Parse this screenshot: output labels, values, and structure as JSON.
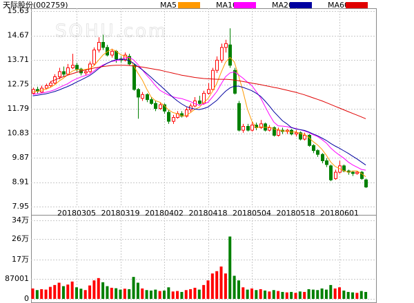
{
  "watermark": "SOHU.com",
  "chart_data": [
    {
      "type": "candlestick",
      "title": "天际股份(002759)",
      "categories": [
        null,
        null,
        null,
        null,
        null,
        null,
        null,
        null,
        null,
        null,
        "20180305",
        null,
        null,
        null,
        null,
        null,
        null,
        null,
        null,
        null,
        "20180319",
        null,
        null,
        null,
        null,
        null,
        null,
        null,
        null,
        null,
        "20180402",
        null,
        null,
        null,
        null,
        null,
        null,
        null,
        null,
        null,
        "20180418",
        null,
        null,
        null,
        null,
        null,
        null,
        null,
        null,
        null,
        "20180504",
        null,
        null,
        null,
        null,
        null,
        null,
        null,
        null,
        null,
        "20180518",
        null,
        null,
        null,
        null,
        null,
        null,
        null,
        null,
        null,
        "20180601",
        null,
        null,
        null,
        null,
        null,
        null
      ],
      "open": [
        12.4,
        12.55,
        12.45,
        12.6,
        12.7,
        12.8,
        13.05,
        13.25,
        13.15,
        13.4,
        13.5,
        13.35,
        13.2,
        13.25,
        13.55,
        14.1,
        14.4,
        14.2,
        13.9,
        14.05,
        13.75,
        13.7,
        13.85,
        13.5,
        12.55,
        12.2,
        12.35,
        12.15,
        12.0,
        11.8,
        11.95,
        11.65,
        11.3,
        11.45,
        11.6,
        11.5,
        11.75,
        11.9,
        12.1,
        12.0,
        12.4,
        12.55,
        13.3,
        13.7,
        14.2,
        14.3,
        13.3,
        12.0,
        10.95,
        11.1,
        10.95,
        11.15,
        11.05,
        11.2,
        10.95,
        11.05,
        10.75,
        10.95,
        10.9,
        10.95,
        10.8,
        10.85,
        10.6,
        10.75,
        10.35,
        10.15,
        10.0,
        9.75,
        9.55,
        9.05,
        9.3,
        9.55,
        9.35,
        9.3,
        9.25,
        9.3,
        9.0
      ],
      "high": [
        12.62,
        12.66,
        12.7,
        12.78,
        12.88,
        13.15,
        13.4,
        13.45,
        13.55,
        13.95,
        13.6,
        13.4,
        13.35,
        13.65,
        14.2,
        14.6,
        14.7,
        14.3,
        14.15,
        14.1,
        13.85,
        14.0,
        13.95,
        13.55,
        12.6,
        12.45,
        12.4,
        12.25,
        12.1,
        12.05,
        12.0,
        11.75,
        11.55,
        11.7,
        11.7,
        11.85,
        12.0,
        12.25,
        12.3,
        12.5,
        12.8,
        13.4,
        13.85,
        14.35,
        14.5,
        14.95,
        13.4,
        12.1,
        11.2,
        11.2,
        11.3,
        11.25,
        11.35,
        11.25,
        11.15,
        11.1,
        11.05,
        11.05,
        11.0,
        11.0,
        10.95,
        10.9,
        10.85,
        10.8,
        10.4,
        10.2,
        10.05,
        9.85,
        9.6,
        9.4,
        9.75,
        9.6,
        9.4,
        9.35,
        9.35,
        9.35,
        9.05
      ],
      "low": [
        12.35,
        12.4,
        12.4,
        12.55,
        12.62,
        12.75,
        12.95,
        13.05,
        13.1,
        13.35,
        13.25,
        13.1,
        13.1,
        13.2,
        13.5,
        14.0,
        14.1,
        13.85,
        13.8,
        13.6,
        13.6,
        13.65,
        13.5,
        12.5,
        11.4,
        12.1,
        12.05,
        11.95,
        11.7,
        11.75,
        11.6,
        11.2,
        11.2,
        11.4,
        11.45,
        11.45,
        11.65,
        11.85,
        11.95,
        11.95,
        12.35,
        12.5,
        13.2,
        13.6,
        14.0,
        13.4,
        12.35,
        10.9,
        10.85,
        10.9,
        10.9,
        10.95,
        11.0,
        10.9,
        10.9,
        10.7,
        10.7,
        10.8,
        10.8,
        10.75,
        10.7,
        10.55,
        10.55,
        10.3,
        10.05,
        9.9,
        9.65,
        9.5,
        8.95,
        9.0,
        9.25,
        9.3,
        9.2,
        9.15,
        9.2,
        9.0,
        8.68
      ],
      "close": [
        12.55,
        12.48,
        12.6,
        12.7,
        12.8,
        13.05,
        13.25,
        13.15,
        13.4,
        13.5,
        13.35,
        13.2,
        13.25,
        13.55,
        14.1,
        14.4,
        14.2,
        13.9,
        14.05,
        13.75,
        13.7,
        13.9,
        13.55,
        12.55,
        12.25,
        12.35,
        12.15,
        12.0,
        11.8,
        11.95,
        11.7,
        11.3,
        11.45,
        11.6,
        11.5,
        11.75,
        11.9,
        12.1,
        12.0,
        12.4,
        12.55,
        13.3,
        13.7,
        14.2,
        14.35,
        13.5,
        12.4,
        10.95,
        11.1,
        10.95,
        11.15,
        11.05,
        11.2,
        10.95,
        11.05,
        10.75,
        10.95,
        10.9,
        10.95,
        10.8,
        10.85,
        10.6,
        10.75,
        10.35,
        10.15,
        10.0,
        9.75,
        9.6,
        9.0,
        9.3,
        9.55,
        9.35,
        9.3,
        9.25,
        9.3,
        9.05,
        8.72
      ],
      "up_color": "#ff0000",
      "down_color": "#008000",
      "series": [
        {
          "name": "MA5",
          "color": "#ff9900",
          "values": [
            12.45,
            12.48,
            12.52,
            12.56,
            12.63,
            12.73,
            12.88,
            12.99,
            13.13,
            13.27,
            13.33,
            13.32,
            13.34,
            13.37,
            13.49,
            13.7,
            13.9,
            14.03,
            14.13,
            14.06,
            13.92,
            13.86,
            13.79,
            13.49,
            13.19,
            12.92,
            12.57,
            12.26,
            12.11,
            12.05,
            11.92,
            11.75,
            11.64,
            11.6,
            11.51,
            11.52,
            11.64,
            11.77,
            11.85,
            12.03,
            12.19,
            12.47,
            12.79,
            13.23,
            13.62,
            13.81,
            13.63,
            13.08,
            12.46,
            11.78,
            11.31,
            11.04,
            11.09,
            11.06,
            11.08,
            11.0,
            10.98,
            10.92,
            10.92,
            10.87,
            10.89,
            10.82,
            10.79,
            10.67,
            10.5,
            10.37,
            10.2,
            9.97,
            9.7,
            9.53,
            9.44,
            9.36,
            9.3,
            9.35,
            9.35,
            9.25,
            9.12
          ]
        },
        {
          "name": "MA10",
          "color": "#ff00ff",
          "values": [
            12.35,
            12.38,
            12.41,
            12.44,
            12.48,
            12.54,
            12.62,
            12.7,
            12.78,
            12.89,
            12.97,
            13.04,
            13.1,
            13.15,
            13.28,
            13.41,
            13.51,
            13.58,
            13.65,
            13.68,
            13.71,
            13.78,
            13.81,
            13.71,
            13.53,
            13.32,
            13.11,
            12.92,
            12.7,
            12.52,
            12.42,
            12.33,
            12.26,
            12.22,
            12.19,
            12.13,
            12.07,
            11.99,
            11.93,
            11.98,
            12.05,
            12.25,
            12.47,
            12.77,
            13.05,
            13.2,
            13.24,
            13.12,
            12.99,
            12.84,
            12.7,
            12.47,
            12.22,
            11.89,
            11.56,
            11.27,
            11.12,
            11.11,
            11.09,
            11.05,
            11.02,
            10.97,
            10.92,
            10.86,
            10.77,
            10.7,
            10.58,
            10.45,
            10.25,
            10.1,
            9.97,
            9.85,
            9.7,
            9.59,
            9.5,
            9.41,
            9.38
          ]
        },
        {
          "name": "MA20",
          "color": "#0000a0",
          "values": [
            12.3,
            12.32,
            12.35,
            12.38,
            12.42,
            12.47,
            12.53,
            12.6,
            12.67,
            12.75,
            12.84,
            12.92,
            13.01,
            13.1,
            13.22,
            13.36,
            13.48,
            13.58,
            13.66,
            13.72,
            13.74,
            13.73,
            13.68,
            13.58,
            13.45,
            13.32,
            13.18,
            13.03,
            12.87,
            12.72,
            12.56,
            12.4,
            12.24,
            12.1,
            11.98,
            11.88,
            11.82,
            11.78,
            11.76,
            11.8,
            11.86,
            11.99,
            12.12,
            12.31,
            12.48,
            12.61,
            12.68,
            12.68,
            12.63,
            12.57,
            12.5,
            12.4,
            12.28,
            12.1,
            11.9,
            11.68,
            11.5,
            11.32,
            11.2,
            11.06,
            11.0,
            10.97,
            10.94,
            10.88,
            10.8,
            10.73,
            10.64,
            10.55,
            10.43,
            10.33,
            10.24,
            10.14,
            10.04,
            9.93,
            9.82,
            9.7,
            9.58
          ]
        },
        {
          "name": "MA60",
          "color": "#e00000",
          "values": [
            null,
            null,
            null,
            null,
            12.85,
            12.92,
            12.99,
            13.05,
            13.11,
            13.17,
            13.22,
            13.27,
            13.31,
            13.35,
            13.39,
            13.42,
            13.45,
            13.47,
            13.49,
            13.5,
            13.5,
            13.5,
            13.49,
            13.47,
            13.45,
            13.43,
            13.4,
            13.37,
            13.34,
            13.31,
            13.27,
            13.23,
            13.19,
            13.15,
            13.11,
            13.08,
            13.05,
            13.02,
            13.0,
            12.98,
            12.97,
            12.96,
            12.95,
            12.95,
            12.95,
            12.94,
            12.92,
            12.89,
            12.86,
            12.83,
            12.8,
            12.77,
            12.74,
            12.7,
            12.67,
            12.63,
            12.6,
            12.56,
            12.52,
            12.48,
            12.44,
            12.39,
            12.34,
            12.28,
            12.22,
            12.16,
            12.1,
            12.03,
            11.96,
            11.89,
            11.82,
            11.75,
            11.68,
            11.61,
            11.54,
            11.47,
            11.4
          ]
        }
      ],
      "ylim": [
        7.95,
        15.63
      ],
      "yticks": [
        15.63,
        14.67,
        13.71,
        12.75,
        11.79,
        10.83,
        9.87,
        8.91,
        7.95
      ],
      "grid": true
    },
    {
      "type": "bar",
      "values": [
        45000,
        38000,
        42000,
        40000,
        52000,
        60000,
        70000,
        55000,
        62000,
        75000,
        50000,
        44000,
        38000,
        58000,
        80000,
        90000,
        72000,
        55000,
        48000,
        46000,
        40000,
        44000,
        42000,
        95000,
        70000,
        45000,
        38000,
        36000,
        40000,
        34000,
        36000,
        50000,
        32000,
        34000,
        30000,
        38000,
        42000,
        48000,
        40000,
        60000,
        80000,
        110000,
        120000,
        140000,
        110000,
        270000,
        100000,
        80000,
        50000,
        40000,
        45000,
        38000,
        42000,
        36000,
        32000,
        38000,
        34000,
        30000,
        28000,
        30000,
        26000,
        32000,
        30000,
        42000,
        40000,
        38000,
        45000,
        40000,
        60000,
        45000,
        50000,
        36000,
        30000,
        28000,
        26000,
        34000,
        30000
      ],
      "ylim": [
        0,
        340000
      ],
      "yticks": [
        {
          "value": 340000,
          "label": "34万"
        },
        {
          "value": 260000,
          "label": "26万"
        },
        {
          "value": 170000,
          "label": "17万"
        },
        87001,
        0
      ],
      "grid": true
    }
  ]
}
